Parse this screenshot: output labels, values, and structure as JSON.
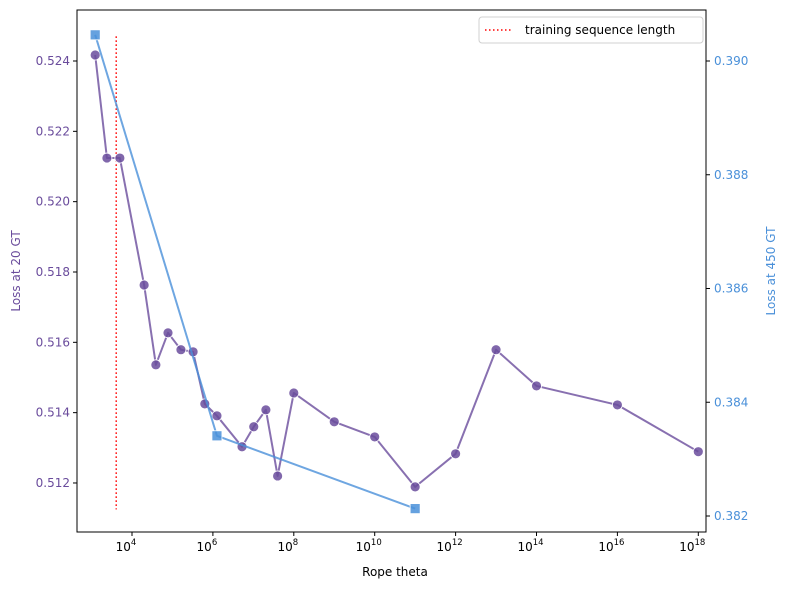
{
  "chart_data": {
    "type": "line",
    "title": "",
    "xlabel": "Rope theta",
    "xscale": "log",
    "xlim_log10": [
      2.6,
      18.4
    ],
    "x_ticks": [
      {
        "exp": 4,
        "label": "10",
        "sup": "4"
      },
      {
        "exp": 6,
        "label": "10",
        "sup": "6"
      },
      {
        "exp": 8,
        "label": "10",
        "sup": "8"
      },
      {
        "exp": 10,
        "label": "10",
        "sup": "10"
      },
      {
        "exp": 12,
        "label": "10",
        "sup": "12"
      },
      {
        "exp": 14,
        "label": "10",
        "sup": "14"
      },
      {
        "exp": 16,
        "label": "10",
        "sup": "16"
      },
      {
        "exp": 18,
        "label": "10",
        "sup": "18"
      }
    ],
    "left_axis": {
      "label": "Loss at 20 GT",
      "color": "#6a4c9c",
      "ylim": [
        0.51065,
        0.52548
      ],
      "ticks": [
        "0.512",
        "0.514",
        "0.516",
        "0.518",
        "0.520",
        "0.522",
        "0.524"
      ]
    },
    "right_axis": {
      "label": "Loss at 450 GT",
      "color": "#4a90d9",
      "ylim": [
        0.3818,
        0.3909
      ],
      "ticks": [
        "0.382",
        "0.384",
        "0.386",
        "0.388",
        "0.390"
      ]
    },
    "series": [
      {
        "name": "Loss at 20 GT",
        "axis": "left",
        "color": "#6a4c9c",
        "marker": "circle",
        "points": [
          {
            "log10_theta": 3.09,
            "y": 0.52417
          },
          {
            "log10_theta": 3.38,
            "y": 0.52124
          },
          {
            "log10_theta": 3.7,
            "y": 0.52124
          },
          {
            "log10_theta": 4.3,
            "y": 0.51763
          },
          {
            "log10_theta": 4.59,
            "y": 0.51536
          },
          {
            "log10_theta": 4.89,
            "y": 0.51627
          },
          {
            "log10_theta": 5.21,
            "y": 0.51579
          },
          {
            "log10_theta": 5.51,
            "y": 0.51573
          },
          {
            "log10_theta": 5.8,
            "y": 0.51425
          },
          {
            "log10_theta": 6.1,
            "y": 0.51391
          },
          {
            "log10_theta": 6.72,
            "y": 0.51303
          },
          {
            "log10_theta": 7.01,
            "y": 0.5136
          },
          {
            "log10_theta": 7.31,
            "y": 0.51408
          },
          {
            "log10_theta": 7.6,
            "y": 0.5122
          },
          {
            "log10_theta": 8.0,
            "y": 0.51456
          },
          {
            "log10_theta": 9.0,
            "y": 0.51374
          },
          {
            "log10_theta": 10.0,
            "y": 0.51331
          },
          {
            "log10_theta": 11.0,
            "y": 0.51189
          },
          {
            "log10_theta": 12.0,
            "y": 0.51283
          },
          {
            "log10_theta": 13.0,
            "y": 0.51579
          },
          {
            "log10_theta": 14.0,
            "y": 0.51476
          },
          {
            "log10_theta": 16.0,
            "y": 0.51422
          },
          {
            "log10_theta": 18.0,
            "y": 0.51289
          }
        ]
      },
      {
        "name": "Loss at 450 GT",
        "axis": "right",
        "color": "#4a90d9",
        "marker": "square",
        "points": [
          {
            "log10_theta": 3.09,
            "y": 0.39046
          },
          {
            "log10_theta": 6.1,
            "y": 0.38341
          },
          {
            "log10_theta": 11.0,
            "y": 0.38213
          }
        ]
      }
    ],
    "annotations": [
      {
        "type": "vline",
        "style": "dotted",
        "color": "#ff0000",
        "log10_theta": 3.61,
        "label": "training sequence length",
        "ymin_left": 0.51125,
        "ymax_left": 0.5247
      }
    ],
    "legend": {
      "position": "upper right",
      "entries": [
        {
          "label": "training sequence length",
          "style": "dotted",
          "color": "#ff0000"
        }
      ]
    },
    "grid": false
  }
}
